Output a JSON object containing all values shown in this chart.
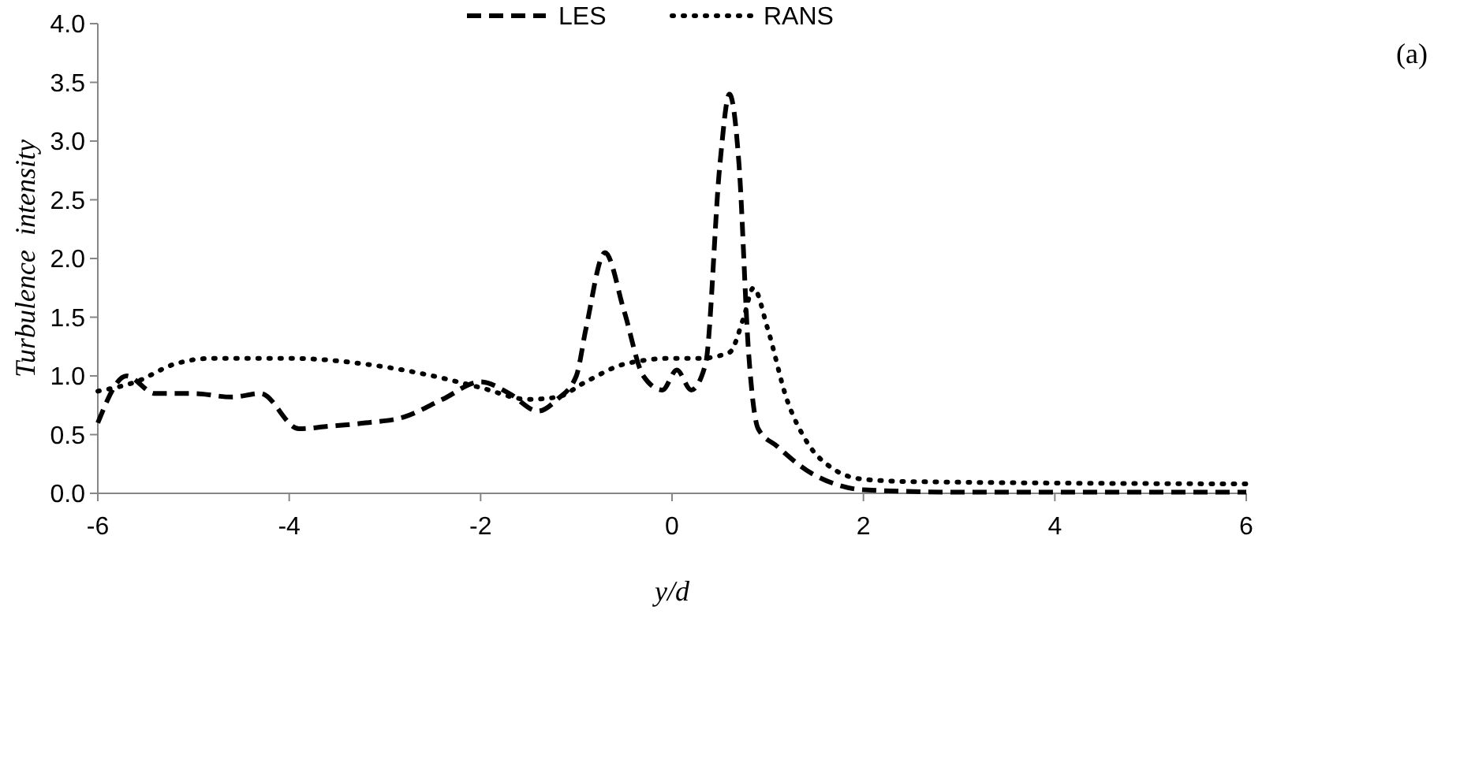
{
  "chart_data": {
    "type": "line",
    "xlabel": "y/d",
    "ylabel": "Turbulence  intensity",
    "annotations": [
      "(a)"
    ],
    "xlim": [
      -6,
      6
    ],
    "xticks": [
      -6,
      -4,
      -2,
      0,
      2,
      4,
      6
    ],
    "ylim": [
      0,
      4
    ],
    "yticks": [
      {
        "value": 0,
        "label": "0.0"
      },
      {
        "value": 0.5,
        "label": "0.5"
      },
      {
        "value": 1,
        "label": "1.0"
      },
      {
        "value": 1.5,
        "label": "1.5"
      },
      {
        "value": 2,
        "label": "2.0"
      },
      {
        "value": 2.5,
        "label": "2.5"
      },
      {
        "value": 3,
        "label": "3.0"
      },
      {
        "value": 3.5,
        "label": "3.5"
      },
      {
        "value": 4,
        "label": "4.0"
      }
    ],
    "grid": false,
    "legend": "top",
    "series": [
      {
        "name": "LES",
        "color": "#000000",
        "line_style": "dashed",
        "x": [
          -6,
          -5.7,
          -5.4,
          -5,
          -4.6,
          -4.3,
          -3.9,
          -3.6,
          -3.2,
          -2.8,
          -2.4,
          -2,
          -1.7,
          -1.4,
          -1.2,
          -1,
          -0.9,
          -0.7,
          -0.5,
          -0.3,
          -0.1,
          0.05,
          0.2,
          0.35,
          0.5,
          0.6,
          0.7,
          0.8,
          0.9,
          1.1,
          1.4,
          1.7,
          2,
          3,
          6
        ],
        "values": [
          0.6,
          1.0,
          0.85,
          0.85,
          0.82,
          0.85,
          0.55,
          0.57,
          0.6,
          0.65,
          0.8,
          0.95,
          0.85,
          0.7,
          0.8,
          1.0,
          1.4,
          2.05,
          1.55,
          1.0,
          0.88,
          1.05,
          0.88,
          1.1,
          2.8,
          3.4,
          2.8,
          1.2,
          0.55,
          0.4,
          0.2,
          0.08,
          0.03,
          0.01,
          0.01
        ]
      },
      {
        "name": "RANS",
        "color": "#000000",
        "line_style": "dotted",
        "x": [
          -6,
          -5.6,
          -5.2,
          -4.8,
          -4,
          -3.2,
          -2.5,
          -2,
          -1.5,
          -1.2,
          -0.9,
          -0.5,
          0,
          0.3,
          0.6,
          0.75,
          0.85,
          1,
          1.2,
          1.4,
          1.7,
          2,
          2.5,
          6
        ],
        "values": [
          0.87,
          0.95,
          1.1,
          1.15,
          1.15,
          1.1,
          1.0,
          0.9,
          0.8,
          0.82,
          0.95,
          1.1,
          1.15,
          1.15,
          1.2,
          1.5,
          1.75,
          1.4,
          0.8,
          0.45,
          0.2,
          0.12,
          0.1,
          0.08
        ]
      }
    ]
  }
}
